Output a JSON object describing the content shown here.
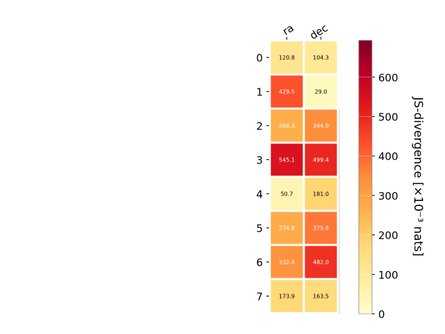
{
  "chart_data": {
    "type": "heatmap",
    "x_categories": [
      "ra",
      "dec"
    ],
    "y_categories": [
      "0",
      "1",
      "2",
      "3",
      "4",
      "5",
      "6",
      "7"
    ],
    "values": [
      [
        120.8,
        104.3
      ],
      [
        429.5,
        29.0
      ],
      [
        266.3,
        344.9
      ],
      [
        545.1,
        499.4
      ],
      [
        50.7,
        181.0
      ],
      [
        274.8,
        375.8
      ],
      [
        332.4,
        482.0
      ],
      [
        173.9,
        163.5
      ]
    ],
    "value_labels": [
      [
        "120.8",
        "104.3"
      ],
      [
        "429.5",
        "29.0"
      ],
      [
        "266.3",
        "344.9"
      ],
      [
        "545.1",
        "499.4"
      ],
      [
        "50.7",
        "181.0"
      ],
      [
        "274.8",
        "375.8"
      ],
      [
        "332.4",
        "482.0"
      ],
      [
        "173.9",
        "163.5"
      ]
    ],
    "colorbar": {
      "label": "JS-divergence [×10⁻³ nats]",
      "range": [
        0,
        693.147
      ],
      "ticks": [
        0,
        100,
        200,
        300,
        400,
        500,
        600
      ],
      "tick_labels": [
        "0",
        "100",
        "200",
        "300",
        "400",
        "500",
        "600"
      ],
      "colormap": "YlOrRd"
    },
    "title": "",
    "xlabel": "",
    "ylabel": "",
    "grid": false
  }
}
